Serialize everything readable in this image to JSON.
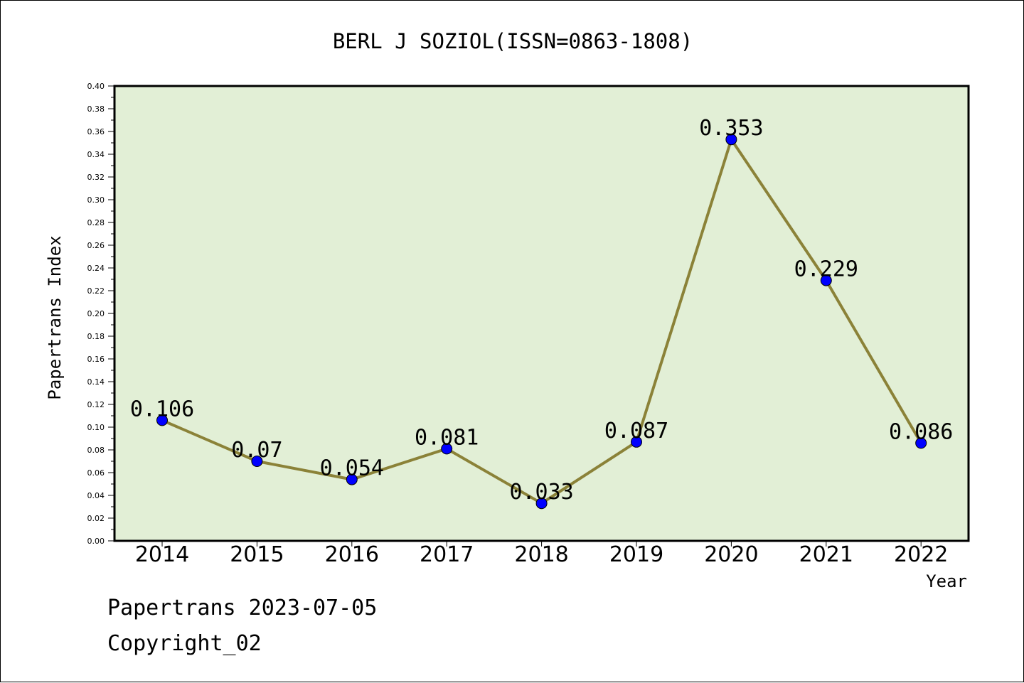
{
  "chart_data": {
    "type": "line",
    "title": "BERL J SOZIOL(ISSN=0863-1808)",
    "xlabel": "Year",
    "ylabel": "Papertrans Index",
    "ylim": [
      0,
      0.4
    ],
    "ytick_step": 0.02,
    "yticks": [
      "0.00",
      "0.02",
      "0.04",
      "0.06",
      "0.08",
      "0.10",
      "0.12",
      "0.14",
      "0.16",
      "0.18",
      "0.20",
      "0.22",
      "0.24",
      "0.26",
      "0.28",
      "0.30",
      "0.32",
      "0.34",
      "0.36",
      "0.38",
      "0.40"
    ],
    "categories": [
      "2014",
      "2015",
      "2016",
      "2017",
      "2018",
      "2019",
      "2020",
      "2021",
      "2022"
    ],
    "values": [
      0.106,
      0.07,
      0.054,
      0.081,
      0.033,
      0.087,
      0.353,
      0.229,
      0.086
    ],
    "data_labels": [
      "0.106",
      "0.07",
      "0.054",
      "0.081",
      "0.033",
      "0.087",
      "0.353",
      "0.229",
      "0.086"
    ],
    "grid": false,
    "colors": {
      "plot_background": "#e2efd6",
      "line": "#8b8238",
      "marker": "#0000ff"
    }
  },
  "footer": {
    "line1": "Papertrans 2023-07-05",
    "line2": "Copyright_02"
  }
}
